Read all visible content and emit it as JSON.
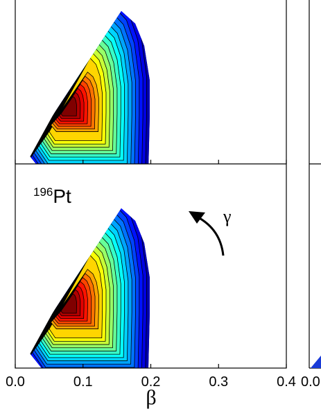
{
  "chart_data": {
    "type": "contour",
    "x_label": "β",
    "xlim": [
      0,
      0.4
    ],
    "xticks": [
      {
        "value": 0,
        "label": "0.0"
      },
      0.1,
      0.2,
      0.3,
      0.4
    ],
    "next_panel_xticks": [
      {
        "value": 0,
        "label": "0.0"
      }
    ],
    "panels": [
      {
        "label_sup": "196",
        "label": "Pt"
      }
    ],
    "annotation": "γ"
  }
}
